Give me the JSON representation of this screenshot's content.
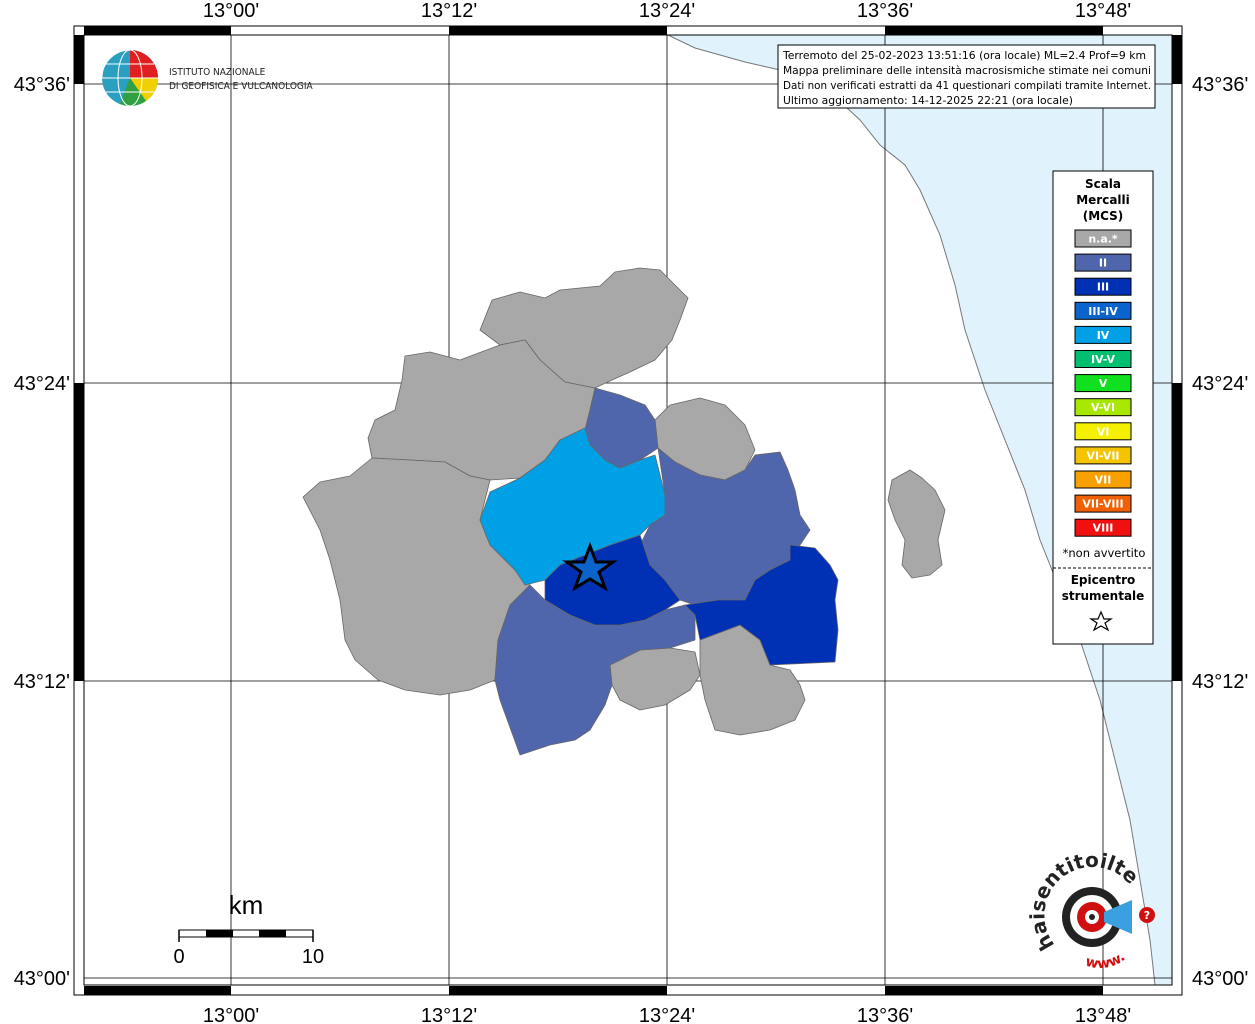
{
  "map": {
    "ticks_top": [
      "13°00'",
      "13°12'",
      "13°24'",
      "13°36'",
      "13°48'"
    ],
    "ticks_bottom": [
      "13°00'",
      "13°12'",
      "13°24'",
      "13°36'",
      "13°48'"
    ],
    "ticks_left": [
      "43°36'",
      "43°24'",
      "43°12'",
      "43°00'"
    ],
    "ticks_right": [
      "43°36'",
      "43°24'",
      "43°12'",
      "43°00'"
    ]
  },
  "logo": {
    "line1": "ISTITUTO NAZIONALE",
    "line2": "DI GEOFISICA E VULCANOLOGIA"
  },
  "info": {
    "line1": "Terremoto del 25-02-2023 13:51:16 (ora locale) ML=2.4 Prof=9 km",
    "line2": "Mappa preliminare delle intensità macrosismiche stimate nei comuni",
    "line3": "Dati non verificati estratti da 41 questionari compilati tramite Internet.",
    "line4": "Ultimo aggiornamento: 14-12-2025 22:21 (ora locale)"
  },
  "legend": {
    "title1": "Scala",
    "title2": "Mercalli",
    "title3": "(MCS)",
    "items": [
      {
        "label": "n.a.*",
        "color": "#a8a8a8"
      },
      {
        "label": "II",
        "color": "#5066ac"
      },
      {
        "label": "III",
        "color": "#0030b4"
      },
      {
        "label": "III-IV",
        "color": "#0a64cc"
      },
      {
        "label": "IV",
        "color": "#00a0e6"
      },
      {
        "label": "IV-V",
        "color": "#00c070"
      },
      {
        "label": "V",
        "color": "#10e020"
      },
      {
        "label": "V-VI",
        "color": "#a8e800"
      },
      {
        "label": "VI",
        "color": "#f4f000"
      },
      {
        "label": "VI-VII",
        "color": "#f4c400"
      },
      {
        "label": "VII",
        "color": "#f8a000"
      },
      {
        "label": "VII-VIII",
        "color": "#f06000"
      },
      {
        "label": "VIII",
        "color": "#f01010"
      }
    ],
    "note": "*non avvertito",
    "epicentro1": "Epicentro",
    "epicentro2": "strumentale"
  },
  "scale": {
    "unit": "km",
    "left": "0",
    "right": "10"
  },
  "watermark": {
    "text": "haisentitoilterremoto.it",
    "www": "www."
  }
}
